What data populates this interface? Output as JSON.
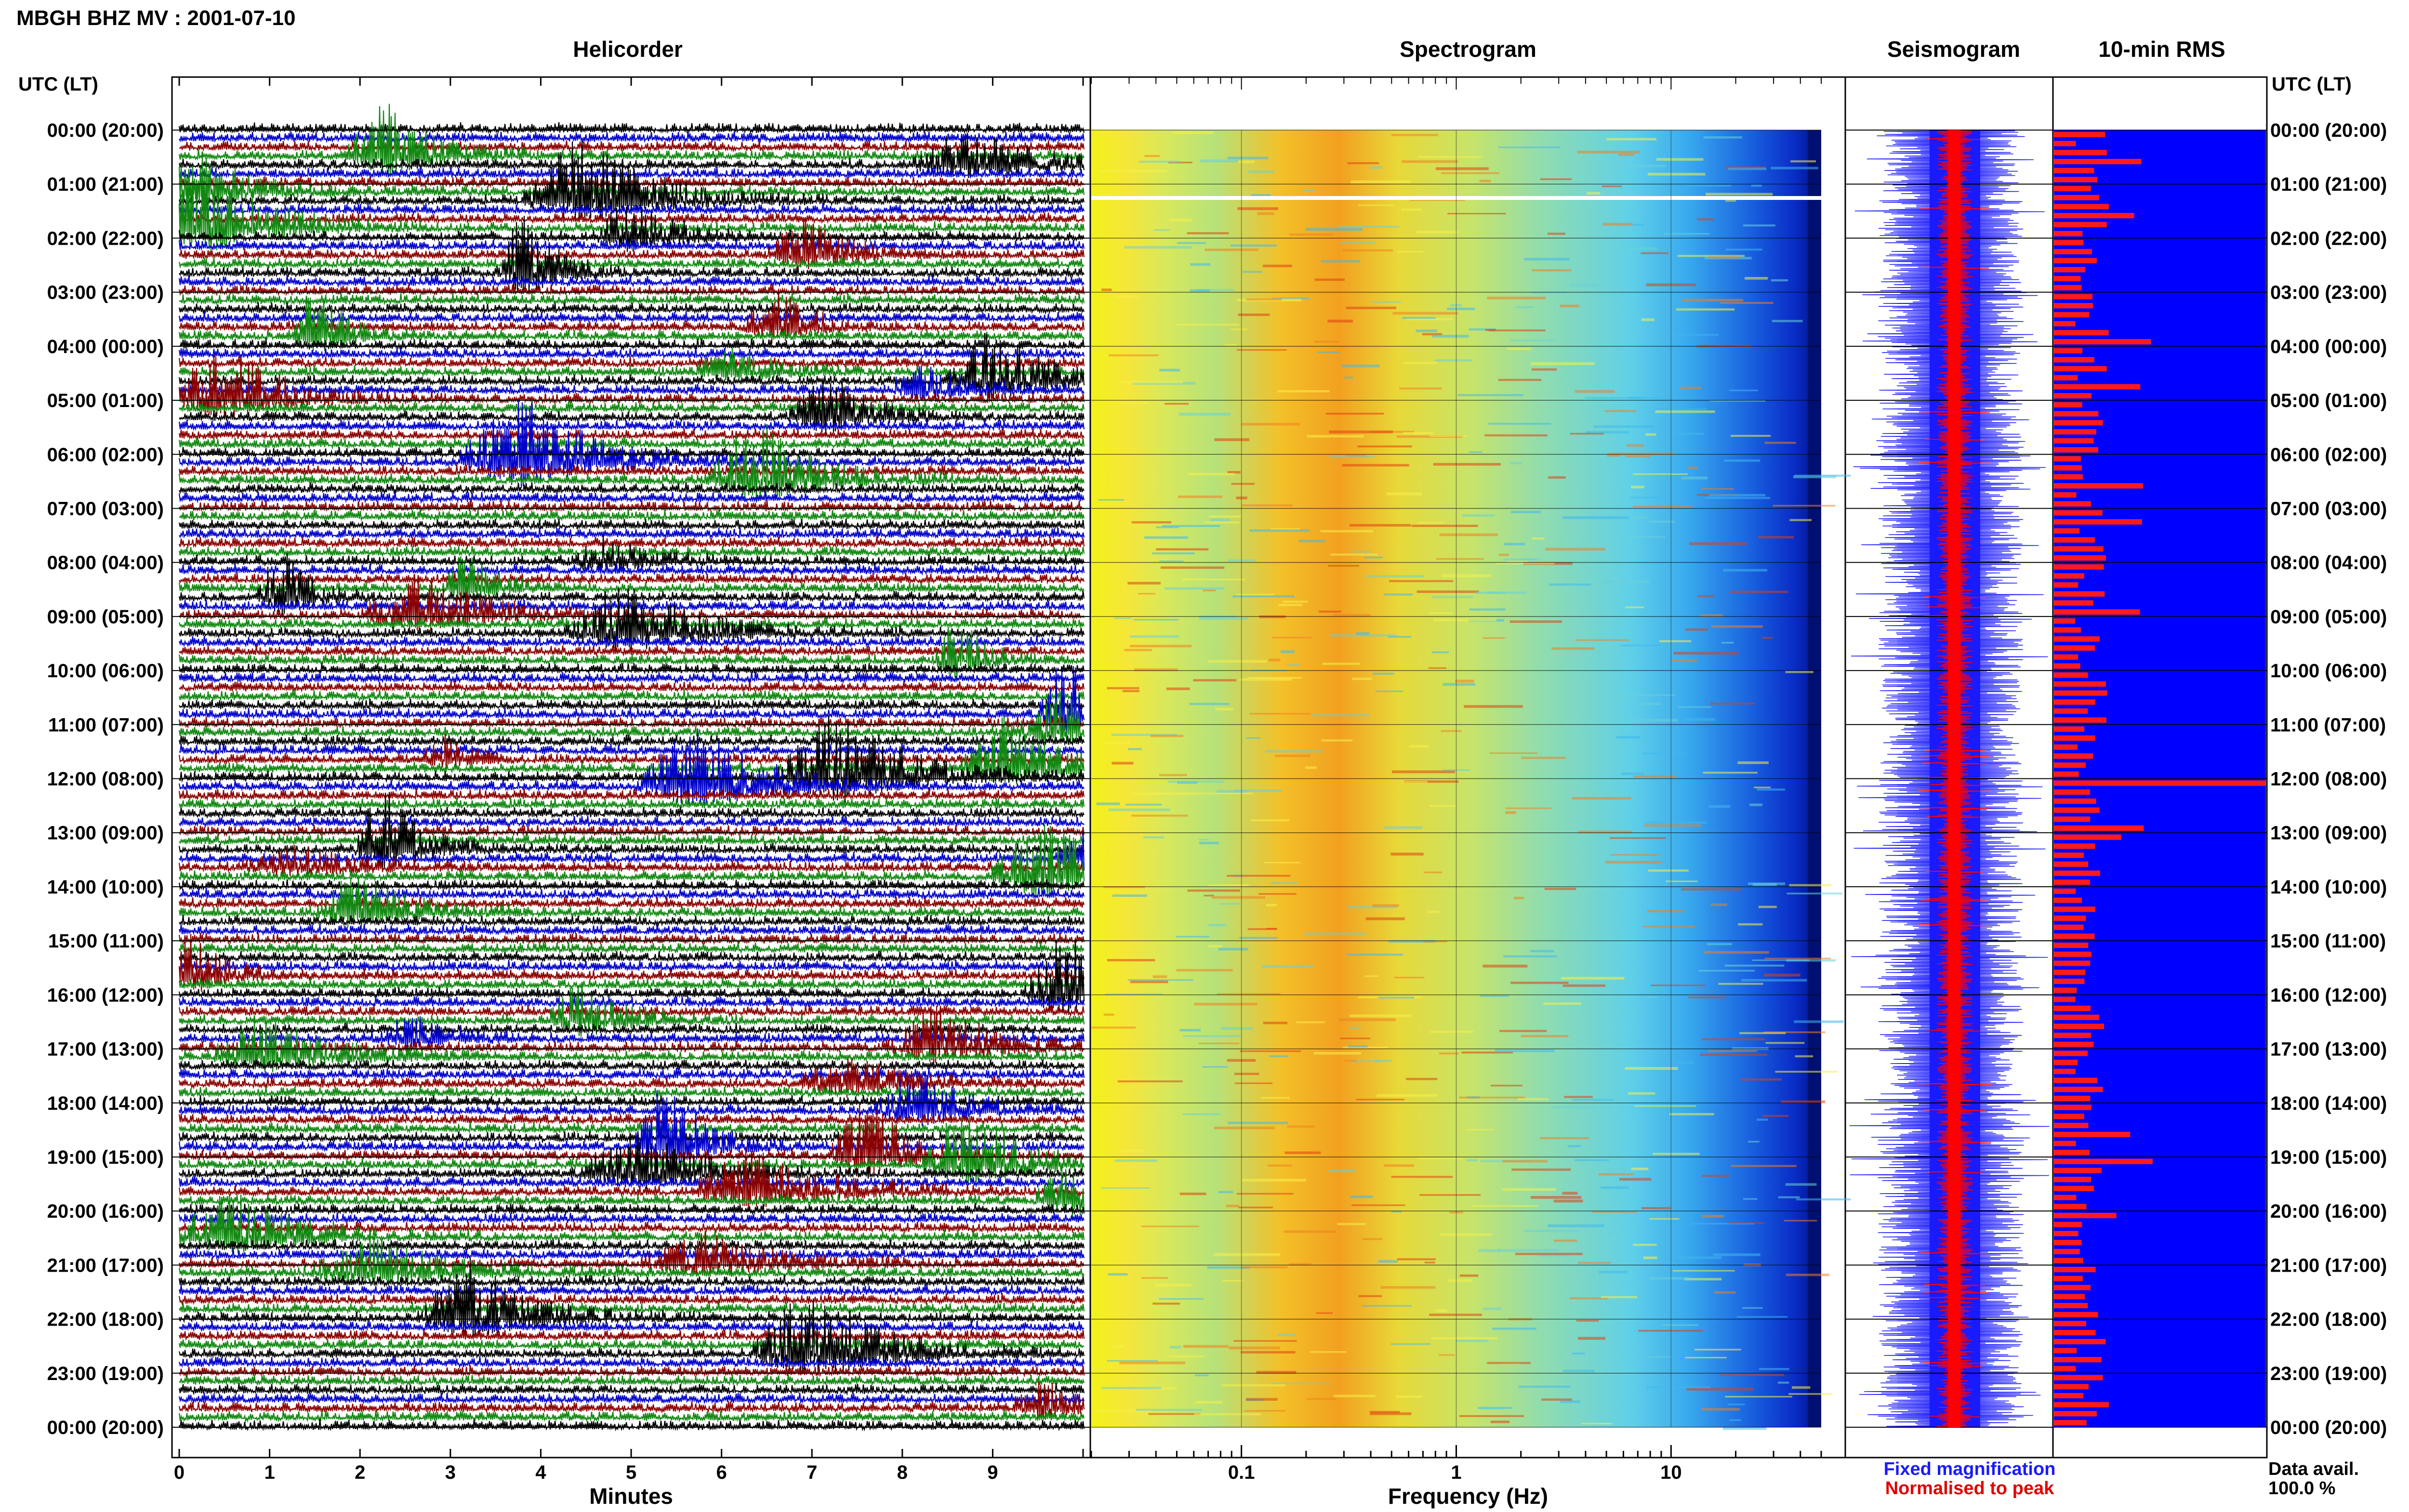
{
  "title": "MBGH BHZ MV : 2001-07-10",
  "panels": {
    "helicorder": "Helicorder",
    "spectrogram": "Spectrogram",
    "seismogram": "Seismogram",
    "rms": "10-min RMS"
  },
  "utc_header_left": "UTC (LT)",
  "utc_header_right": "UTC (LT)",
  "legend": {
    "fixed": "Fixed magnification",
    "fixed_color": "#1a1aff",
    "normalised": "Normalised to peak",
    "normalised_color": "#e00000"
  },
  "data_avail": {
    "label": "Data avail.",
    "value": "100.0 %"
  },
  "colors": {
    "trace_cycle": [
      "#000000",
      "#0000cc",
      "#8b0000",
      "#118811"
    ],
    "seismo_fixed": "#1a1aff",
    "seismo_norm": "#ff0000",
    "rms_bg": "#0000ff",
    "rms_bar": "#ff1a1a"
  },
  "chart_data": [
    {
      "type": "line",
      "name": "helicorder",
      "xlabel": "Minutes",
      "xticks": [
        "0",
        "1",
        "2",
        "3",
        "4",
        "5",
        "6",
        "7",
        "8",
        "9"
      ],
      "xlim": [
        0,
        10
      ],
      "hour_labels": [
        "00:00 (20:00)",
        "01:00 (21:00)",
        "02:00 (22:00)",
        "03:00 (23:00)",
        "04:00 (00:00)",
        "05:00 (01:00)",
        "06:00 (02:00)",
        "07:00 (03:00)",
        "08:00 (04:00)",
        "09:00 (05:00)",
        "10:00 (06:00)",
        "11:00 (07:00)",
        "12:00 (08:00)",
        "13:00 (09:00)",
        "14:00 (10:00)",
        "15:00 (11:00)",
        "16:00 (12:00)",
        "17:00 (13:00)",
        "18:00 (14:00)",
        "19:00 (15:00)",
        "20:00 (16:00)",
        "21:00 (17:00)",
        "22:00 (18:00)",
        "23:00 (19:00)",
        "00:00 (20:00)"
      ],
      "lines_per_hour": 6
    },
    {
      "type": "heatmap",
      "name": "spectrogram",
      "xlabel": "Frequency (Hz)",
      "xscale": "log",
      "xticks": [
        "0.1",
        "1",
        "10"
      ],
      "xlim": [
        0.02,
        50
      ]
    },
    {
      "type": "line",
      "name": "seismogram"
    },
    {
      "type": "bar",
      "name": "10-min RMS",
      "n_bars": 144,
      "peak_hour_index": 12
    }
  ]
}
